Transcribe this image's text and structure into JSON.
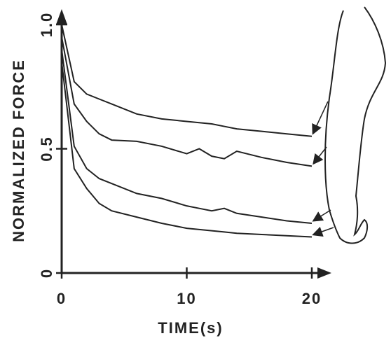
{
  "chart_data": {
    "type": "line",
    "x_label": "TIME(s)",
    "y_label": "NORMALIZED FORCE",
    "x": [
      0,
      1,
      2,
      3,
      4,
      6,
      8,
      10,
      11,
      12,
      13,
      14,
      16,
      18,
      20
    ],
    "series": [
      {
        "color": "#222222",
        "values": [
          1.0,
          0.77,
          0.72,
          0.7,
          0.68,
          0.64,
          0.62,
          0.61,
          0.605,
          0.6,
          0.59,
          0.58,
          0.57,
          0.56,
          0.55
        ]
      },
      {
        "color": "#222222",
        "values": [
          0.95,
          0.68,
          0.61,
          0.56,
          0.535,
          0.53,
          0.51,
          0.48,
          0.5,
          0.47,
          0.46,
          0.49,
          0.465,
          0.445,
          0.43
        ]
      },
      {
        "color": "#222222",
        "values": [
          0.9,
          0.51,
          0.42,
          0.38,
          0.36,
          0.32,
          0.3,
          0.27,
          0.26,
          0.25,
          0.26,
          0.24,
          0.225,
          0.21,
          0.2
        ]
      },
      {
        "color": "#222222",
        "values": [
          0.85,
          0.42,
          0.34,
          0.28,
          0.25,
          0.225,
          0.2,
          0.18,
          0.175,
          0.17,
          0.165,
          0.16,
          0.155,
          0.15,
          0.145
        ]
      }
    ],
    "xlim": [
      0,
      20
    ],
    "xticks": [
      0,
      10,
      20
    ],
    "ylim": [
      0,
      1
    ],
    "yticks": [
      0,
      0.5,
      {
        "value": 1,
        "label": "1.0"
      }
    ]
  }
}
